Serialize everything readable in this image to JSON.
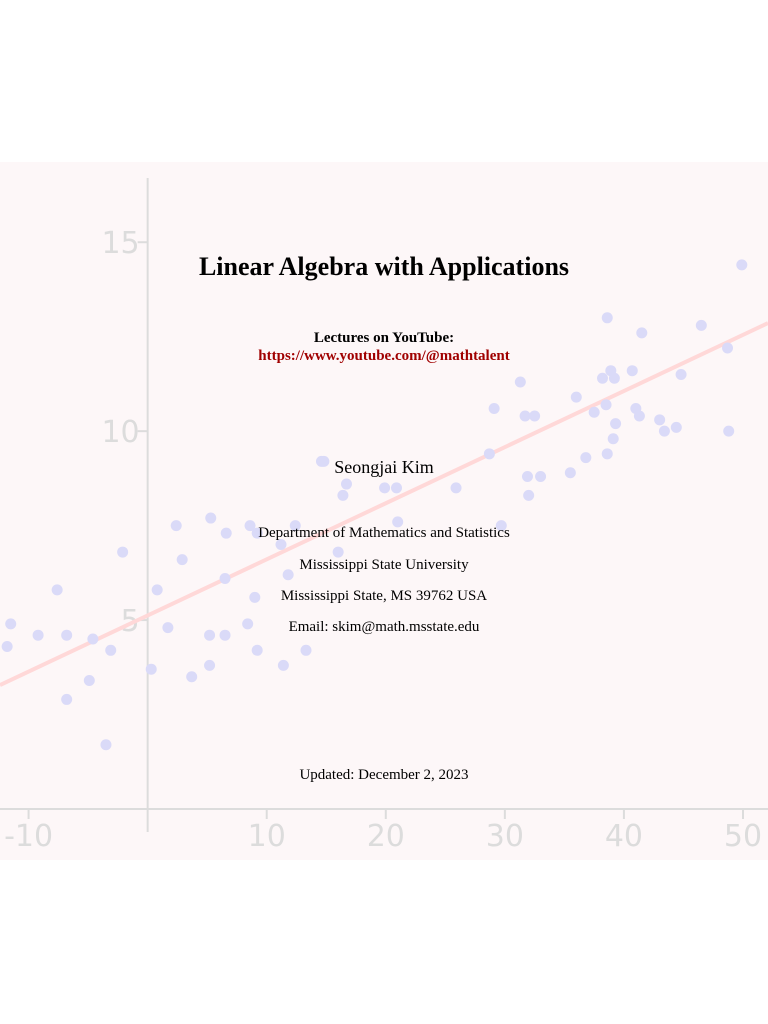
{
  "chart_data": {
    "type": "scatter",
    "x": [
      49.9,
      38.6,
      41.5,
      46.5,
      48.7,
      38.9,
      38.2,
      39.2,
      40.7,
      44.8,
      31.3,
      36.0,
      29.1,
      37.5,
      38.5,
      41.0,
      41.3,
      31.7,
      32.5,
      43.0,
      44.4,
      43.4,
      39.3,
      48.8,
      39.1,
      38.6,
      28.7,
      36.8,
      14.6,
      14.8,
      31.9,
      33.0,
      35.5,
      16.7,
      25.9,
      19.9,
      20.9,
      16.4,
      32.0,
      21.0,
      5.3,
      2.4,
      12.4,
      8.6,
      29.7,
      6.6,
      9.2,
      11.2,
      -2.1,
      16.0,
      2.9,
      6.5,
      11.8,
      -7.6,
      0.8,
      9.0,
      -11.5,
      -6.8,
      -9.2,
      1.7,
      5.2,
      6.5,
      8.4,
      -4.6,
      -11.8,
      -3.1,
      9.2,
      13.3,
      11.4,
      5.2,
      0.3,
      3.7,
      -4.9,
      -6.8,
      -3.5
    ],
    "values": [
      14.4,
      13.0,
      12.6,
      12.8,
      12.2,
      11.6,
      11.4,
      11.4,
      11.6,
      11.5,
      11.3,
      10.9,
      10.6,
      10.5,
      10.7,
      10.6,
      10.4,
      10.4,
      10.4,
      10.3,
      10.1,
      10.0,
      10.2,
      10.0,
      9.8,
      9.4,
      9.4,
      9.3,
      9.2,
      9.2,
      8.8,
      8.8,
      8.9,
      8.6,
      8.5,
      8.5,
      8.5,
      8.3,
      8.3,
      7.6,
      7.7,
      7.5,
      7.5,
      7.5,
      7.5,
      7.3,
      7.3,
      7.0,
      6.8,
      6.8,
      6.6,
      6.1,
      6.2,
      5.8,
      5.8,
      5.6,
      4.9,
      4.6,
      4.6,
      4.8,
      4.6,
      4.6,
      4.9,
      4.5,
      4.3,
      4.2,
      4.2,
      4.2,
      3.8,
      3.8,
      3.7,
      3.5,
      3.4,
      2.9,
      1.7
    ],
    "color": "#dadaf8",
    "fit_line": {
      "x": [
        -12.4,
        52.1
      ],
      "values": [
        3.28,
        12.86
      ],
      "color": "#ffd8d8"
    },
    "xlim": [
      -12.4,
      52.1
    ],
    "ylim": [
      0,
      16.7
    ],
    "xticks": [
      -10,
      10,
      20,
      30,
      40,
      50
    ],
    "yticks": [
      5,
      10,
      15
    ]
  },
  "document": {
    "title": "Linear Algebra with Applications",
    "lectures_label": "Lectures on YouTube:",
    "url": "https://www.youtube.com/@mathtalent",
    "author": "Seongjai Kim",
    "affiliation": [
      "Department of Mathematics and Statistics",
      "Mississippi State University",
      "Mississippi State, MS 39762 USA",
      "Email: skim@math.msstate.edu"
    ],
    "updated": "Updated: December 2, 2023"
  }
}
